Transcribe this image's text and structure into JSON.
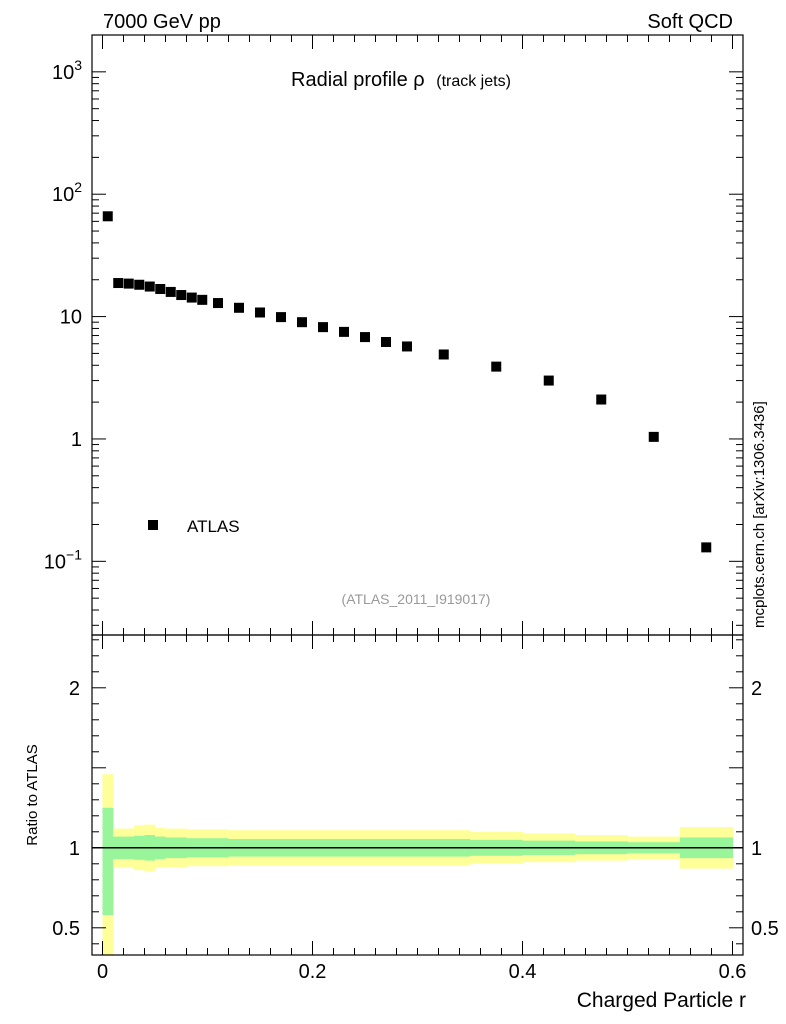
{
  "header": {
    "left": "7000 GeV pp",
    "right": "Soft QCD"
  },
  "title": {
    "main": "Radial profile ρ",
    "sub": "(track jets)"
  },
  "analysis_tag": "(ATLAS_2011_I919017)",
  "side_label": "mcplots.cern.ch [arXiv:1306.3436]",
  "legend": {
    "entry": "ATLAS"
  },
  "ratio_ylabel": "Ratio to ATLAS",
  "xlabel": "Charged Particle r",
  "chart_data": {
    "type": "scatter",
    "xlim": [
      -0.01,
      0.61
    ],
    "main": {
      "yscale": "log",
      "ylim": [
        0.025,
        2000
      ],
      "yticks": [
        {
          "value": 0.1,
          "base": "10",
          "exp": "−1"
        },
        {
          "value": 1,
          "label": "1"
        },
        {
          "value": 10,
          "label": "10"
        },
        {
          "value": 100,
          "base": "10",
          "exp": "2"
        },
        {
          "value": 1000,
          "base": "10",
          "exp": "3"
        }
      ],
      "series": [
        {
          "name": "ATLAS",
          "x": [
            0.005,
            0.015,
            0.025,
            0.035,
            0.045,
            0.055,
            0.065,
            0.075,
            0.085,
            0.095,
            0.11,
            0.13,
            0.15,
            0.17,
            0.19,
            0.21,
            0.23,
            0.25,
            0.27,
            0.29,
            0.325,
            0.375,
            0.425,
            0.475,
            0.525,
            0.575
          ],
          "y": [
            66,
            18.8,
            18.6,
            18.2,
            17.6,
            16.8,
            15.9,
            15.0,
            14.3,
            13.7,
            12.9,
            11.8,
            10.8,
            9.9,
            9.0,
            8.2,
            7.5,
            6.8,
            6.2,
            5.7,
            4.9,
            3.9,
            3.0,
            2.1,
            1.04,
            0.13
          ]
        }
      ]
    },
    "ratio": {
      "ylim": [
        0.33,
        2.33
      ],
      "yticks": [
        0.5,
        1,
        2
      ],
      "reference": 1,
      "bands": {
        "edges": [
          0.0,
          0.01,
          0.02,
          0.03,
          0.04,
          0.05,
          0.06,
          0.07,
          0.08,
          0.09,
          0.1,
          0.12,
          0.14,
          0.16,
          0.18,
          0.2,
          0.22,
          0.24,
          0.26,
          0.28,
          0.3,
          0.35,
          0.4,
          0.45,
          0.5,
          0.55,
          0.6
        ],
        "inner_low": [
          0.58,
          0.93,
          0.93,
          0.925,
          0.92,
          0.93,
          0.935,
          0.935,
          0.94,
          0.94,
          0.94,
          0.945,
          0.945,
          0.945,
          0.945,
          0.945,
          0.945,
          0.945,
          0.945,
          0.945,
          0.945,
          0.95,
          0.955,
          0.96,
          0.965,
          0.935
        ],
        "inner_high": [
          1.25,
          1.07,
          1.07,
          1.075,
          1.08,
          1.07,
          1.065,
          1.065,
          1.06,
          1.06,
          1.06,
          1.055,
          1.055,
          1.055,
          1.055,
          1.055,
          1.055,
          1.055,
          1.055,
          1.055,
          1.055,
          1.05,
          1.045,
          1.04,
          1.035,
          1.065
        ],
        "outer_low": [
          0.33,
          0.88,
          0.88,
          0.86,
          0.855,
          0.875,
          0.88,
          0.88,
          0.885,
          0.885,
          0.885,
          0.89,
          0.89,
          0.89,
          0.89,
          0.89,
          0.89,
          0.89,
          0.89,
          0.89,
          0.89,
          0.9,
          0.91,
          0.92,
          0.93,
          0.87
        ],
        "outer_high": [
          1.46,
          1.12,
          1.12,
          1.14,
          1.145,
          1.125,
          1.12,
          1.12,
          1.115,
          1.115,
          1.115,
          1.11,
          1.11,
          1.11,
          1.11,
          1.11,
          1.11,
          1.11,
          1.11,
          1.11,
          1.11,
          1.1,
          1.09,
          1.08,
          1.07,
          1.13
        ]
      }
    },
    "xticks": [
      0,
      0.2,
      0.4,
      0.6
    ],
    "colors": {
      "inner_band": "#99f599",
      "outer_band": "#ffff99",
      "marker": "#000000",
      "axis": "#000000",
      "tag": "#999999"
    }
  }
}
